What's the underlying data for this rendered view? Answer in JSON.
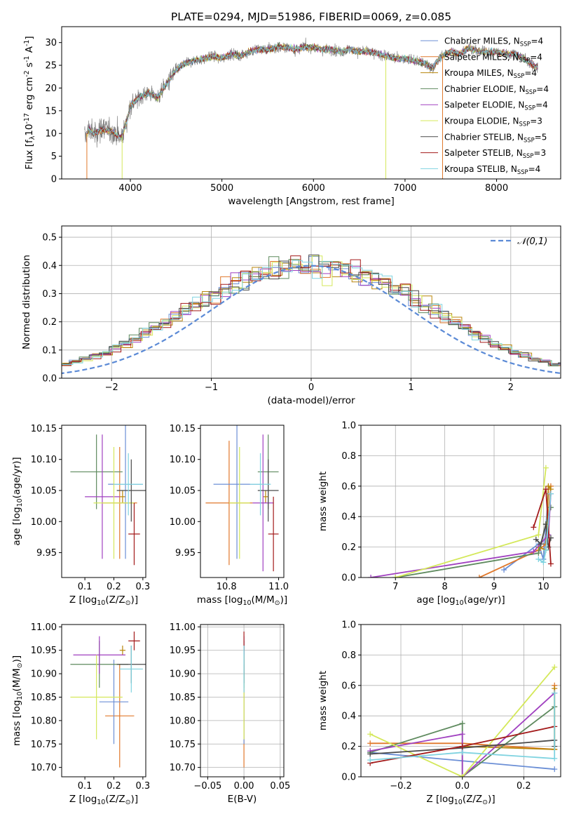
{
  "figure": {
    "title": "PLATE=0294, MJD=51986, FIBERID=0069, z=0.085"
  },
  "colors": {
    "Chabrier MILES": "#6b8fd6",
    "Salpeter MILES": "#e0782b",
    "Kroupa MILES": "#b8860b",
    "Chabrier ELODIE": "#5e8a5e",
    "Salpeter ELODIE": "#a040c0",
    "Kroupa ELODIE": "#d4e85a",
    "Chabrier STELIB": "#4a4a4a",
    "Salpeter STELIB": "#a31a1a",
    "Kroupa STELIB": "#7fd3e0",
    "gaussian": "#5b8ad6"
  },
  "chart_data": [
    {
      "id": "spectrum",
      "type": "line",
      "title": "PLATE=0294, MJD=51986, FIBERID=0069, z=0.085",
      "xlabel": "wavelength [Angstrom, rest frame]",
      "ylabel": "Flux [f$_\\lambda$10$^{-17}$ erg cm$^{-2}$ s$^{-1}$ A$^{-1}$]",
      "xlim": [
        3250,
        8700
      ],
      "ylim": [
        0,
        33.5
      ],
      "xticks": [
        4000,
        5000,
        6000,
        7000,
        8000
      ],
      "yticks": [
        0,
        5,
        10,
        15,
        20,
        25,
        30
      ],
      "grid": false,
      "legend_position": "right",
      "continuum": {
        "x": [
          3500,
          3550,
          3600,
          3700,
          3800,
          3900,
          3950,
          4000,
          4100,
          4200,
          4300,
          4400,
          4500,
          4600,
          4700,
          4800,
          4900,
          5000,
          5100,
          5200,
          5300,
          5400,
          5500,
          5600,
          5700,
          5800,
          5900,
          6000,
          6100,
          6200,
          6300,
          6400,
          6500,
          6600,
          6700,
          6800,
          6900,
          7000,
          7100,
          7200,
          7300,
          7400,
          7500,
          7600,
          7700,
          7800,
          7900,
          8000,
          8100,
          8200,
          8300,
          8400,
          8450
        ],
        "y": [
          9,
          11,
          10,
          11,
          10.5,
          9,
          12,
          16,
          18,
          19,
          18,
          21,
          24,
          25.5,
          26,
          26.5,
          27,
          26.5,
          27.5,
          27,
          28,
          28.5,
          28.5,
          29,
          29,
          28.5,
          29,
          29,
          28.5,
          28.5,
          28,
          28.5,
          28,
          28,
          27.5,
          27,
          26.5,
          26.5,
          26,
          25.5,
          24.5,
          27,
          28,
          27.5,
          29,
          28,
          28,
          28,
          27.5,
          27.5,
          26.5,
          25,
          24.5
        ]
      },
      "series": [
        {
          "name": "Chabrier MILES, N$_{SSP}$=4",
          "color": "#6b8fd6"
        },
        {
          "name": "Salpeter MILES, N$_{SSP}$=4",
          "color": "#e0782b"
        },
        {
          "name": "Kroupa MILES, N$_{SSP}$=4",
          "color": "#b8860b"
        },
        {
          "name": "Chabrier ELODIE, N$_{SSP}$=4",
          "color": "#5e8a5e"
        },
        {
          "name": "Salpeter ELODIE, N$_{SSP}$=4",
          "color": "#a040c0"
        },
        {
          "name": "Kroupa ELODIE, N$_{SSP}$=3",
          "color": "#d4e85a"
        },
        {
          "name": "Chabrier STELIB, N$_{SSP}$=5",
          "color": "#4a4a4a"
        },
        {
          "name": "Salpeter STELIB, N$_{SSP}$=3",
          "color": "#a31a1a"
        },
        {
          "name": "Kroupa STELIB, N$_{SSP}$=4",
          "color": "#7fd3e0"
        }
      ]
    },
    {
      "id": "residuals",
      "type": "area",
      "xlabel": "(data-model)/error",
      "ylabel": "Normed distribution",
      "xlim": [
        -2.5,
        2.5
      ],
      "ylim": [
        0,
        0.54
      ],
      "xticks": [
        -2,
        -1,
        0,
        1,
        2
      ],
      "yticks": [
        0.0,
        0.1,
        0.2,
        0.3,
        0.4,
        0.5
      ],
      "grid": true,
      "legend_position": "top-right",
      "reference": {
        "name": "$\\mathcal{N}(0,1)$",
        "style": "dashed",
        "color": "#5b8ad6"
      },
      "bin_width": 0.1,
      "envelope": [
        0.02,
        0.02,
        0.03,
        0.04,
        0.05,
        0.05,
        0.06,
        0.07,
        0.08,
        0.09,
        0.11,
        0.12,
        0.14,
        0.16,
        0.18,
        0.2,
        0.22,
        0.24,
        0.26,
        0.28,
        0.3,
        0.32,
        0.34,
        0.36,
        0.37,
        0.38,
        0.39,
        0.39,
        0.4,
        0.4,
        0.4,
        0.4,
        0.39,
        0.39,
        0.38,
        0.37,
        0.36,
        0.34,
        0.32,
        0.3,
        0.28,
        0.26,
        0.24,
        0.22,
        0.2,
        0.18,
        0.16,
        0.14,
        0.12,
        0.11,
        0.09,
        0.08,
        0.07,
        0.06,
        0.05,
        0.05,
        0.04,
        0.03,
        0.02,
        0.02
      ],
      "series": [
        {
          "name": "Chabrier MILES",
          "color": "#6b8fd6"
        },
        {
          "name": "Salpeter MILES",
          "color": "#e0782b"
        },
        {
          "name": "Kroupa MILES",
          "color": "#b8860b"
        },
        {
          "name": "Chabrier ELODIE",
          "color": "#5e8a5e"
        },
        {
          "name": "Salpeter ELODIE",
          "color": "#a040c0"
        },
        {
          "name": "Kroupa ELODIE",
          "color": "#d4e85a"
        },
        {
          "name": "Chabrier STELIB",
          "color": "#4a4a4a"
        },
        {
          "name": "Salpeter STELIB",
          "color": "#a31a1a"
        },
        {
          "name": "Kroupa STELIB",
          "color": "#7fd3e0"
        }
      ]
    },
    {
      "id": "age-vs-Z",
      "type": "scatter",
      "xlabel": "Z [log$_{10}$(Z/Z$_\\odot$)]",
      "ylabel": "age  [log$_{10}$(age/yr)]",
      "xlim": [
        0.02,
        0.31
      ],
      "ylim": [
        9.91,
        10.155
      ],
      "xticks": [
        0.1,
        0.2,
        0.3
      ],
      "yticks": [
        9.95,
        10.0,
        10.05,
        10.1,
        10.15
      ],
      "points": [
        {
          "x": 0.23,
          "y": 10.04,
          "xerr": 0.01,
          "yerr": 0.01,
          "color": "#b8860b"
        },
        {
          "x": 0.22,
          "y": 10.03,
          "xerr": 0.06,
          "yerr": 0.09,
          "color": "#e0782b"
        },
        {
          "x": 0.24,
          "y": 10.06,
          "xerr": 0.06,
          "yerr": 0.12,
          "color": "#6b8fd6"
        },
        {
          "x": 0.14,
          "y": 10.08,
          "xerr": 0.09,
          "yerr": 0.06,
          "color": "#5e8a5e"
        },
        {
          "x": 0.16,
          "y": 10.04,
          "xerr": 0.06,
          "yerr": 0.1,
          "color": "#a040c0"
        },
        {
          "x": 0.2,
          "y": 10.03,
          "xerr": 0.07,
          "yerr": 0.09,
          "color": "#d4e85a"
        },
        {
          "x": 0.26,
          "y": 10.05,
          "xerr": 0.05,
          "yerr": 0.05,
          "color": "#4a4a4a"
        },
        {
          "x": 0.27,
          "y": 9.98,
          "xerr": 0.02,
          "yerr": 0.05,
          "color": "#a31a1a"
        },
        {
          "x": 0.25,
          "y": 10.06,
          "xerr": 0.05,
          "yerr": 0.05,
          "color": "#7fd3e0"
        }
      ]
    },
    {
      "id": "age-vs-mass",
      "type": "scatter",
      "xlabel": "mass [log$_{10}$(M/M$_\\odot$)]",
      "ylabel": "",
      "xlim": [
        10.7,
        11.02
      ],
      "ylim": [
        9.91,
        10.155
      ],
      "xticks": [
        10.8,
        11.0
      ],
      "yticks": [
        9.95,
        10.0,
        10.05,
        10.1,
        10.15
      ],
      "points": [
        {
          "x": 10.95,
          "y": 10.04,
          "xerr": 0.01,
          "yerr": 0.01,
          "color": "#b8860b"
        },
        {
          "x": 10.81,
          "y": 10.03,
          "xerr": 0.09,
          "yerr": 0.1,
          "color": "#e0782b"
        },
        {
          "x": 10.84,
          "y": 10.06,
          "xerr": 0.09,
          "yerr": 0.12,
          "color": "#6b8fd6"
        },
        {
          "x": 10.96,
          "y": 10.08,
          "xerr": 0.04,
          "yerr": 0.06,
          "color": "#5e8a5e"
        },
        {
          "x": 10.94,
          "y": 10.03,
          "xerr": 0.04,
          "yerr": 0.11,
          "color": "#a040c0"
        },
        {
          "x": 10.85,
          "y": 10.03,
          "xerr": 0.04,
          "yerr": 0.09,
          "color": "#d4e85a"
        },
        {
          "x": 10.96,
          "y": 10.05,
          "xerr": 0.04,
          "yerr": 0.05,
          "color": "#4a4a4a"
        },
        {
          "x": 10.98,
          "y": 9.98,
          "xerr": 0.02,
          "yerr": 0.06,
          "color": "#a31a1a"
        },
        {
          "x": 10.93,
          "y": 10.06,
          "xerr": 0.04,
          "yerr": 0.05,
          "color": "#7fd3e0"
        }
      ]
    },
    {
      "id": "weight-vs-age",
      "type": "line",
      "xlabel": "age  [log$_{10}$(age/yr)]",
      "ylabel": "mass weight",
      "xlim": [
        6.3,
        10.35
      ],
      "ylim": [
        0,
        1
      ],
      "xticks": [
        7,
        8,
        9,
        10
      ],
      "yticks": [
        0.0,
        0.2,
        0.4,
        0.6,
        0.8,
        1.0
      ],
      "grid": true,
      "series": [
        {
          "name": "Chabrier MILES",
          "color": "#6b8fd6",
          "x": [
            9.2,
            9.9,
            10.0,
            10.1
          ],
          "y": [
            0.05,
            0.22,
            0.12,
            0.55
          ]
        },
        {
          "name": "Salpeter MILES",
          "color": "#e0782b",
          "x": [
            8.7,
            9.9,
            10.05,
            10.15
          ],
          "y": [
            0.0,
            0.18,
            0.22,
            0.6
          ]
        },
        {
          "name": "Kroupa MILES",
          "color": "#b8860b",
          "x": [
            9.9,
            10.05,
            10.1,
            10.15
          ],
          "y": [
            0.2,
            0.18,
            0.6,
            0.58
          ]
        },
        {
          "name": "Chabrier ELODIE",
          "color": "#5e8a5e",
          "x": [
            7.0,
            9.9,
            10.05,
            10.15
          ],
          "y": [
            0.0,
            0.16,
            0.35,
            0.46
          ]
        },
        {
          "name": "Salpeter ELODIE",
          "color": "#a040c0",
          "x": [
            6.5,
            9.8,
            10.1,
            10.15
          ],
          "y": [
            0.0,
            0.17,
            0.28,
            0.55
          ]
        },
        {
          "name": "Kroupa ELODIE",
          "color": "#d4e85a",
          "x": [
            7.0,
            9.9,
            10.05
          ],
          "y": [
            0.0,
            0.28,
            0.72
          ]
        },
        {
          "name": "Chabrier STELIB",
          "color": "#4a4a4a",
          "x": [
            9.85,
            9.95,
            10.05,
            10.1,
            10.15
          ],
          "y": [
            0.25,
            0.22,
            0.35,
            0.2,
            0.26
          ]
        },
        {
          "name": "Salpeter STELIB",
          "color": "#a31a1a",
          "x": [
            9.8,
            10.05,
            10.15
          ],
          "y": [
            0.33,
            0.58,
            0.09
          ]
        },
        {
          "name": "Kroupa STELIB",
          "color": "#7fd3e0",
          "x": [
            9.9,
            10.0,
            10.05,
            10.15
          ],
          "y": [
            0.12,
            0.1,
            0.18,
            0.55
          ]
        }
      ]
    },
    {
      "id": "mass-vs-Z",
      "type": "scatter",
      "xlabel": "Z [log$_{10}$(Z/Z$_\\odot$)]",
      "ylabel": "mass [log$_{10}$(M/M$_\\odot$)]",
      "xlim": [
        0.02,
        0.31
      ],
      "ylim": [
        10.68,
        11.005
      ],
      "xticks": [
        0.1,
        0.2,
        0.3
      ],
      "yticks": [
        10.7,
        10.75,
        10.8,
        10.85,
        10.9,
        10.95,
        11.0
      ],
      "points": [
        {
          "x": 0.23,
          "y": 10.95,
          "xerr": 0.01,
          "yerr": 0.01,
          "color": "#b8860b"
        },
        {
          "x": 0.22,
          "y": 10.81,
          "xerr": 0.05,
          "yerr": 0.11,
          "color": "#e0782b"
        },
        {
          "x": 0.2,
          "y": 10.84,
          "xerr": 0.05,
          "yerr": 0.09,
          "color": "#6b8fd6"
        },
        {
          "x": 0.15,
          "y": 10.92,
          "xerr": 0.1,
          "yerr": 0.05,
          "color": "#5e8a5e"
        },
        {
          "x": 0.15,
          "y": 10.94,
          "xerr": 0.09,
          "yerr": 0.04,
          "color": "#a040c0"
        },
        {
          "x": 0.14,
          "y": 10.85,
          "xerr": 0.09,
          "yerr": 0.09,
          "color": "#d4e85a"
        },
        {
          "x": 0.26,
          "y": 10.92,
          "xerr": 0.05,
          "yerr": 0.04,
          "color": "#4a4a4a"
        },
        {
          "x": 0.27,
          "y": 10.97,
          "xerr": 0.02,
          "yerr": 0.02,
          "color": "#a31a1a"
        },
        {
          "x": 0.26,
          "y": 10.91,
          "xerr": 0.04,
          "yerr": 0.05,
          "color": "#7fd3e0"
        }
      ]
    },
    {
      "id": "mass-vs-EBV",
      "type": "scatter",
      "xlabel": "E(B-V)",
      "ylabel": "",
      "xlim": [
        -0.06,
        0.055
      ],
      "ylim": [
        10.68,
        11.005
      ],
      "xticks": [
        -0.05,
        0.0,
        0.05
      ],
      "yticks": [
        10.7,
        10.75,
        10.8,
        10.85,
        10.9,
        10.95,
        11.0
      ],
      "grid": true,
      "points": [
        {
          "x": 0.0,
          "y": 10.81,
          "xerr": 0.0,
          "yerr": 0.11,
          "color": "#e0782b"
        },
        {
          "x": 0.0,
          "y": 10.84,
          "xerr": 0.0,
          "yerr": 0.09,
          "color": "#6b8fd6"
        },
        {
          "x": 0.0,
          "y": 10.92,
          "xerr": 0.0,
          "yerr": 0.05,
          "color": "#5e8a5e"
        },
        {
          "x": 0.0,
          "y": 10.94,
          "xerr": 0.0,
          "yerr": 0.04,
          "color": "#a040c0"
        },
        {
          "x": 0.0,
          "y": 10.85,
          "xerr": 0.0,
          "yerr": 0.09,
          "color": "#d4e85a"
        },
        {
          "x": 0.0,
          "y": 10.92,
          "xerr": 0.0,
          "yerr": 0.04,
          "color": "#4a4a4a"
        },
        {
          "x": 0.0,
          "y": 10.97,
          "xerr": 0.0,
          "yerr": 0.02,
          "color": "#a31a1a"
        },
        {
          "x": 0.0,
          "y": 10.91,
          "xerr": 0.0,
          "yerr": 0.05,
          "color": "#7fd3e0"
        }
      ]
    },
    {
      "id": "weight-vs-Z",
      "type": "line",
      "xlabel": "Z [log$_{10}$(Z/Z$_\\odot$)]",
      "ylabel": "mass weight",
      "xlim": [
        -0.33,
        0.32
      ],
      "ylim": [
        0,
        1
      ],
      "xticks": [
        -0.2,
        0.0,
        0.2
      ],
      "yticks": [
        0.0,
        0.2,
        0.4,
        0.6,
        0.8,
        1.0
      ],
      "grid": true,
      "series": [
        {
          "name": "Chabrier MILES",
          "color": "#6b8fd6",
          "x": [
            -0.3,
            0.3
          ],
          "y": [
            0.16,
            0.05
          ]
        },
        {
          "name": "Salpeter MILES",
          "color": "#e0782b",
          "x": [
            -0.3,
            0.0,
            0.3,
            0.3
          ],
          "y": [
            0.22,
            0.22,
            0.18,
            0.6
          ]
        },
        {
          "name": "Kroupa MILES",
          "color": "#b8860b",
          "x": [
            0.0,
            0.3,
            0.3
          ],
          "y": [
            0.2,
            0.18,
            0.58
          ]
        },
        {
          "name": "Chabrier ELODIE",
          "color": "#5e8a5e",
          "x": [
            -0.3,
            0.0,
            0.0,
            0.3
          ],
          "y": [
            0.16,
            0.35,
            0.0,
            0.46
          ]
        },
        {
          "name": "Salpeter ELODIE",
          "color": "#a040c0",
          "x": [
            -0.3,
            0.0,
            0.0,
            0.3
          ],
          "y": [
            0.17,
            0.28,
            0.0,
            0.55
          ]
        },
        {
          "name": "Kroupa ELODIE",
          "color": "#d4e85a",
          "x": [
            -0.3,
            0.0,
            0.3
          ],
          "y": [
            0.28,
            0.0,
            0.72
          ]
        },
        {
          "name": "Chabrier STELIB",
          "color": "#4a4a4a",
          "x": [
            -0.3,
            0.0,
            0.3,
            0.3
          ],
          "y": [
            0.15,
            0.19,
            0.24,
            0.2
          ]
        },
        {
          "name": "Salpeter STELIB",
          "color": "#a31a1a",
          "x": [
            -0.3,
            0.0,
            0.3
          ],
          "y": [
            0.09,
            0.2,
            0.33
          ]
        },
        {
          "name": "Kroupa STELIB",
          "color": "#7fd3e0",
          "x": [
            -0.3,
            0.0,
            0.3,
            0.3
          ],
          "y": [
            0.11,
            0.16,
            0.12,
            0.55
          ]
        }
      ]
    }
  ]
}
